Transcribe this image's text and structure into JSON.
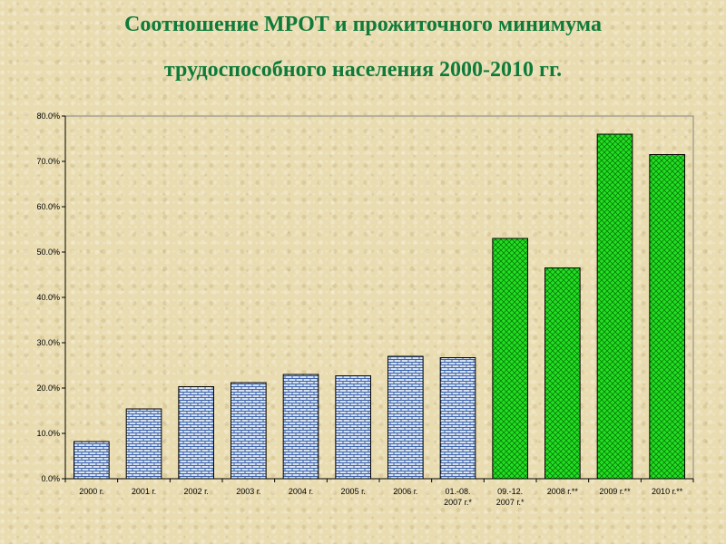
{
  "title": {
    "line1": "Соотношение МРОТ и прожиточного минимума",
    "line2": "трудоспособного населения 2000-2010 гг."
  },
  "colors": {
    "title": "#0f7a3a",
    "bar_blue": "#b9cde8",
    "bar_green": "#22e022",
    "bar_outline": "#000000"
  },
  "chart_data": {
    "type": "bar",
    "title": "Соотношение МРОТ и прожиточного минимума трудоспособного населения 2000-2010 гг.",
    "xlabel": "",
    "ylabel": "",
    "ylim": [
      0,
      80
    ],
    "y_ticks": [
      "0.0%",
      "10.0%",
      "20.0%",
      "30.0%",
      "40.0%",
      "50.0%",
      "60.0%",
      "70.0%",
      "80.0%"
    ],
    "grid": false,
    "legend": "none",
    "categories": [
      [
        "2000 г."
      ],
      [
        "2001 г."
      ],
      [
        "2002 г."
      ],
      [
        "2003 г."
      ],
      [
        "2004 г."
      ],
      [
        "2005 г."
      ],
      [
        "2006 г."
      ],
      [
        "01.-08.",
        "2007 г.*"
      ],
      [
        "09.-12.",
        "2007 г.*"
      ],
      [
        "2008 г.**"
      ],
      [
        "2009 г.**"
      ],
      [
        "2010 г.**"
      ]
    ],
    "values": [
      8.2,
      15.4,
      20.3,
      21.2,
      23.0,
      22.7,
      27.0,
      26.7,
      53.0,
      46.5,
      76.0,
      71.5
    ],
    "bar_styles": [
      "blue",
      "blue",
      "blue",
      "blue",
      "blue",
      "blue",
      "blue",
      "blue",
      "green",
      "green",
      "green",
      "green"
    ]
  }
}
